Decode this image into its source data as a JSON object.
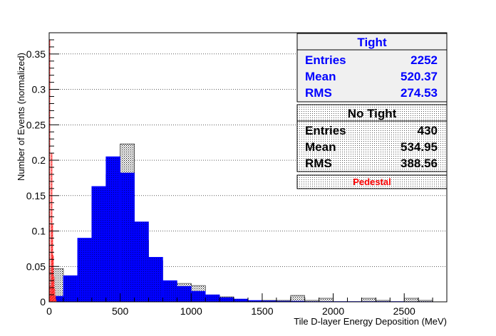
{
  "chart_data": {
    "type": "bar",
    "xlabel": "Tile D-layer Energy Deposition (MeV)",
    "ylabel": "Number of Events (normalized)",
    "xlim": [
      0,
      2800
    ],
    "ylim": [
      0,
      0.38
    ],
    "x_ticks": [
      0,
      500,
      1000,
      1500,
      2000,
      2500
    ],
    "y_ticks": [
      0.05,
      0.1,
      0.15,
      0.2,
      0.25,
      0.3,
      0.35
    ],
    "grid": "horizontal dotted",
    "bin_width": 100,
    "bin_edges_start": [
      0,
      100,
      200,
      300,
      400,
      500,
      600,
      700,
      800,
      900,
      1000,
      1100,
      1200,
      1300,
      1400,
      1500,
      1600,
      1700,
      1800,
      1900,
      2000,
      2100,
      2200,
      2300,
      2400,
      2500,
      2600
    ],
    "series": [
      {
        "name": "Tight",
        "color": "#0000ff",
        "style": "filled",
        "values": [
          0.008,
          0.037,
          0.09,
          0.163,
          0.205,
          0.182,
          0.113,
          0.063,
          0.03,
          0.022,
          0.015,
          0.01,
          0.006,
          0.004,
          0.002,
          0.0015,
          0.001,
          0.001,
          0.0005,
          0.0005,
          0.0005,
          0.0005,
          0.0005,
          0.0005,
          0.0005,
          0.0003,
          0.0003
        ]
      },
      {
        "name": "No Tight",
        "color": "#000000",
        "style": "dotted-hatch",
        "values": [
          0.047,
          0.025,
          0.073,
          0.14,
          0.18,
          0.223,
          0.087,
          0.058,
          0.028,
          0.026,
          0.023,
          0.009,
          0.007,
          0.002,
          0.0,
          0.002,
          0.002,
          0.009,
          0.002,
          0.005,
          0.0,
          0.0,
          0.005,
          0.002,
          0.0,
          0.005,
          0.002
        ]
      },
      {
        "name": "Pedestal",
        "color": "#ff0000",
        "style": "hatched",
        "bin_width": 5,
        "x": [
          0,
          5,
          10,
          15,
          20,
          25,
          30,
          35,
          40,
          45
        ],
        "values": [
          0.37,
          0.022,
          0.008,
          0.21,
          0.11,
          0.065,
          0.035,
          0.018,
          0.008,
          0.003
        ]
      }
    ],
    "stats_boxes": [
      {
        "title": "Tight",
        "color": "#0000ff",
        "rows": [
          {
            "label": "Entries",
            "value": "2252"
          },
          {
            "label": "Mean",
            "value": "520.37"
          },
          {
            "label": "RMS",
            "value": "274.53"
          }
        ]
      },
      {
        "title": "No Tight",
        "color": "#000000",
        "rows": [
          {
            "label": "Entries",
            "value": "430"
          },
          {
            "label": "Mean",
            "value": "534.95"
          },
          {
            "label": "RMS",
            "value": "388.56"
          }
        ]
      }
    ],
    "legend": [
      {
        "label": "Pedestal",
        "color": "#ff0000"
      }
    ],
    "legend_placement": "top-right"
  }
}
